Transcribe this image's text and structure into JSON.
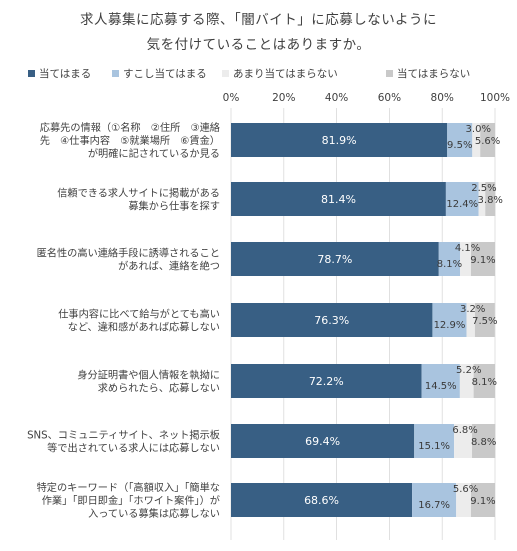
{
  "title_lines": [
    "求人募集に応募する際、「闇バイト」に応募しないように",
    "気を付けていることはありますか。"
  ],
  "legend": [
    "当てはまる",
    "すこし当てはまる",
    "あまり当てはまらない",
    "当てはまらない"
  ],
  "colors": [
    "#385f84",
    "#a9c4df",
    "#ececec",
    "#c9c9c9"
  ],
  "chart_data": {
    "type": "bar",
    "orientation": "horizontal",
    "stacked": true,
    "percent_stacked": true,
    "title": "求人募集に応募する際、「闇バイト」に応募しないように気を付けていることはありますか。",
    "xlim": [
      0,
      100
    ],
    "x_ticks": [
      "0%",
      "20%",
      "40%",
      "60%",
      "80%",
      "100%"
    ],
    "grid": true,
    "legend_position": "top",
    "categories": [
      [
        "応募先の情報（①名称　②住所　③連絡",
        "先　④仕事内容　⑤就業場所　⑥賃金）",
        "が明確に記されているか見る"
      ],
      [
        "信頼できる求人サイトに掲載がある",
        "募集から仕事を探す"
      ],
      [
        "匿名性の高い連絡手段に誘導されること",
        "があれば、連絡を絶つ"
      ],
      [
        "仕事内容に比べて給与がとても高い",
        "など、違和感があれば応募しない"
      ],
      [
        "身分証明書や個人情報を執拗に",
        "求められたら、応募しない"
      ],
      [
        "SNS、コミュニティサイト、ネット掲示板",
        "等で出されている求人には応募しない"
      ],
      [
        "特定のキーワード（「高額収入」「簡単な",
        "作業」「即日即金」「ホワイト案件」）が",
        "入っている募集は応募しない"
      ]
    ],
    "series": [
      {
        "name": "当てはまる",
        "values": [
          81.9,
          81.4,
          78.7,
          76.3,
          72.2,
          69.4,
          68.6
        ],
        "labels": [
          "81.9%",
          "81.4%",
          "78.7%",
          "76.3%",
          "72.2%",
          "69.4%",
          "68.6%"
        ]
      },
      {
        "name": "すこし当てはまる",
        "values": [
          9.5,
          12.4,
          8.1,
          12.9,
          14.5,
          15.1,
          16.7
        ],
        "labels": [
          "9.5%",
          "12.4%",
          "8.1%",
          "12.9%",
          "14.5%",
          "15.1%",
          "16.7%"
        ]
      },
      {
        "name": "あまり当てはまらない",
        "values": [
          3.0,
          2.5,
          4.1,
          3.2,
          5.2,
          6.8,
          5.6
        ],
        "labels": [
          "3.0%",
          "2.5%",
          "4.1%",
          "3.2%",
          "5.2%",
          "6.8%",
          "5.6%"
        ]
      },
      {
        "name": "当てはまらない",
        "values": [
          5.6,
          3.8,
          9.1,
          7.5,
          8.1,
          8.8,
          9.1
        ],
        "labels": [
          "5.6%",
          "3.8%",
          "9.1%",
          "7.5%",
          "8.1%",
          "8.8%",
          "9.1%"
        ]
      }
    ]
  }
}
